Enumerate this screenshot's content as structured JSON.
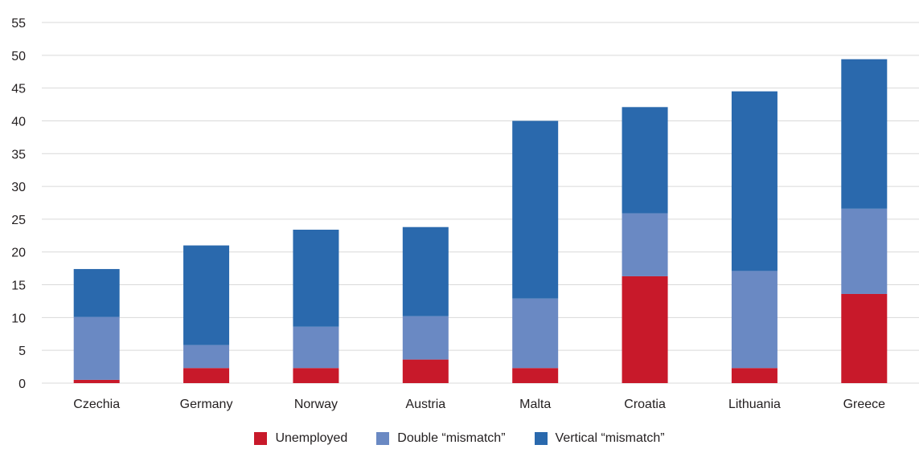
{
  "chart_data": {
    "type": "bar",
    "stacked": true,
    "categories": [
      "Czechia",
      "Germany",
      "Norway",
      "Austria",
      "Malta",
      "Croatia",
      "Lithuania",
      "Greece"
    ],
    "series": [
      {
        "name": "Unemployed",
        "color": "#c8192a",
        "values": [
          0.5,
          2.3,
          2.3,
          3.6,
          2.3,
          16.3,
          2.3,
          13.6
        ]
      },
      {
        "name": "Double “mismatch”",
        "color": "#6a89c3",
        "values": [
          9.6,
          3.5,
          6.3,
          6.6,
          10.6,
          9.6,
          14.8,
          13.0
        ]
      },
      {
        "name": "Vertical “mismatch”",
        "color": "#2a69ad",
        "values": [
          7.3,
          15.2,
          14.8,
          13.6,
          27.1,
          16.2,
          27.4,
          22.8
        ]
      }
    ],
    "y_ticks": [
      "0",
      "5",
      "10",
      "15",
      "20",
      "25",
      "30",
      "35",
      "40",
      "45",
      "50",
      "55"
    ],
    "ylim": [
      0,
      55
    ],
    "grid": true,
    "legend_position": "bottom"
  }
}
